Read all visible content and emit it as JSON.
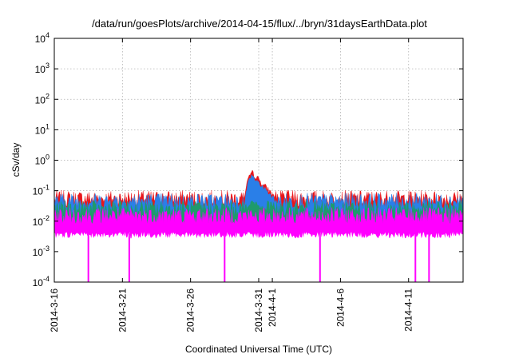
{
  "chart_data": {
    "type": "area",
    "title": "/data/run/goesPlots/archive/2014-04-15/flux/../bryn/31daysEarthData.plot",
    "xlabel": "Coordinated Universal Time (UTC)",
    "ylabel": "cSv/day",
    "yscale": "log",
    "ylim": [
      0.0001,
      10000
    ],
    "xlim": [
      "2014-03-16",
      "2014-04-15"
    ],
    "grid": true,
    "legend": "none",
    "y_ticks": [
      {
        "base": "10",
        "exp": "-4",
        "value": 0.0001
      },
      {
        "base": "10",
        "exp": "-3",
        "value": 0.001
      },
      {
        "base": "10",
        "exp": "-2",
        "value": 0.01
      },
      {
        "base": "10",
        "exp": "-1",
        "value": 0.1
      },
      {
        "base": "10",
        "exp": "0",
        "value": 1
      },
      {
        "base": "10",
        "exp": "1",
        "value": 10
      },
      {
        "base": "10",
        "exp": "2",
        "value": 100
      },
      {
        "base": "10",
        "exp": "3",
        "value": 1000
      },
      {
        "base": "10",
        "exp": "4",
        "value": 10000
      }
    ],
    "x_ticks": [
      {
        "date": "2014-03-16",
        "label": "2014-3-16"
      },
      {
        "date": "2014-03-21",
        "label": "2014-3-21"
      },
      {
        "date": "2014-03-26",
        "label": "2014-3-26"
      },
      {
        "date": "2014-03-31",
        "label": "2014-3-31"
      },
      {
        "date": "2014-04-01",
        "label": "2014-4-1"
      },
      {
        "date": "2014-04-06",
        "label": "2014-4-6"
      },
      {
        "date": "2014-04-11",
        "label": "2014-4-11"
      }
    ],
    "series": [
      {
        "color": "#e8161b",
        "baseline": 0.055,
        "peak": {
          "date": "2014-03-30",
          "value": 0.4
        }
      },
      {
        "color": "#2a7fe8",
        "baseline": 0.045,
        "peak": {
          "date": "2014-03-30",
          "value": 0.3
        }
      },
      {
        "color": "#1f9a6b",
        "baseline": 0.025,
        "peak": {
          "date": "2014-03-30",
          "value": 0.05
        }
      },
      {
        "color": "#ff00ff",
        "baseline": 0.015,
        "low": 0.004,
        "dropouts": [
          {
            "date": "2014-03-18",
            "value": 0.0001
          },
          {
            "date": "2014-03-21",
            "value": 0.0001
          },
          {
            "date": "2014-03-28",
            "value": 0.0001
          },
          {
            "date": "2014-04-04",
            "value": 0.0001
          },
          {
            "date": "2014-04-11",
            "value": 0.0001
          },
          {
            "date": "2014-04-12",
            "value": 0.0001
          }
        ]
      }
    ]
  }
}
